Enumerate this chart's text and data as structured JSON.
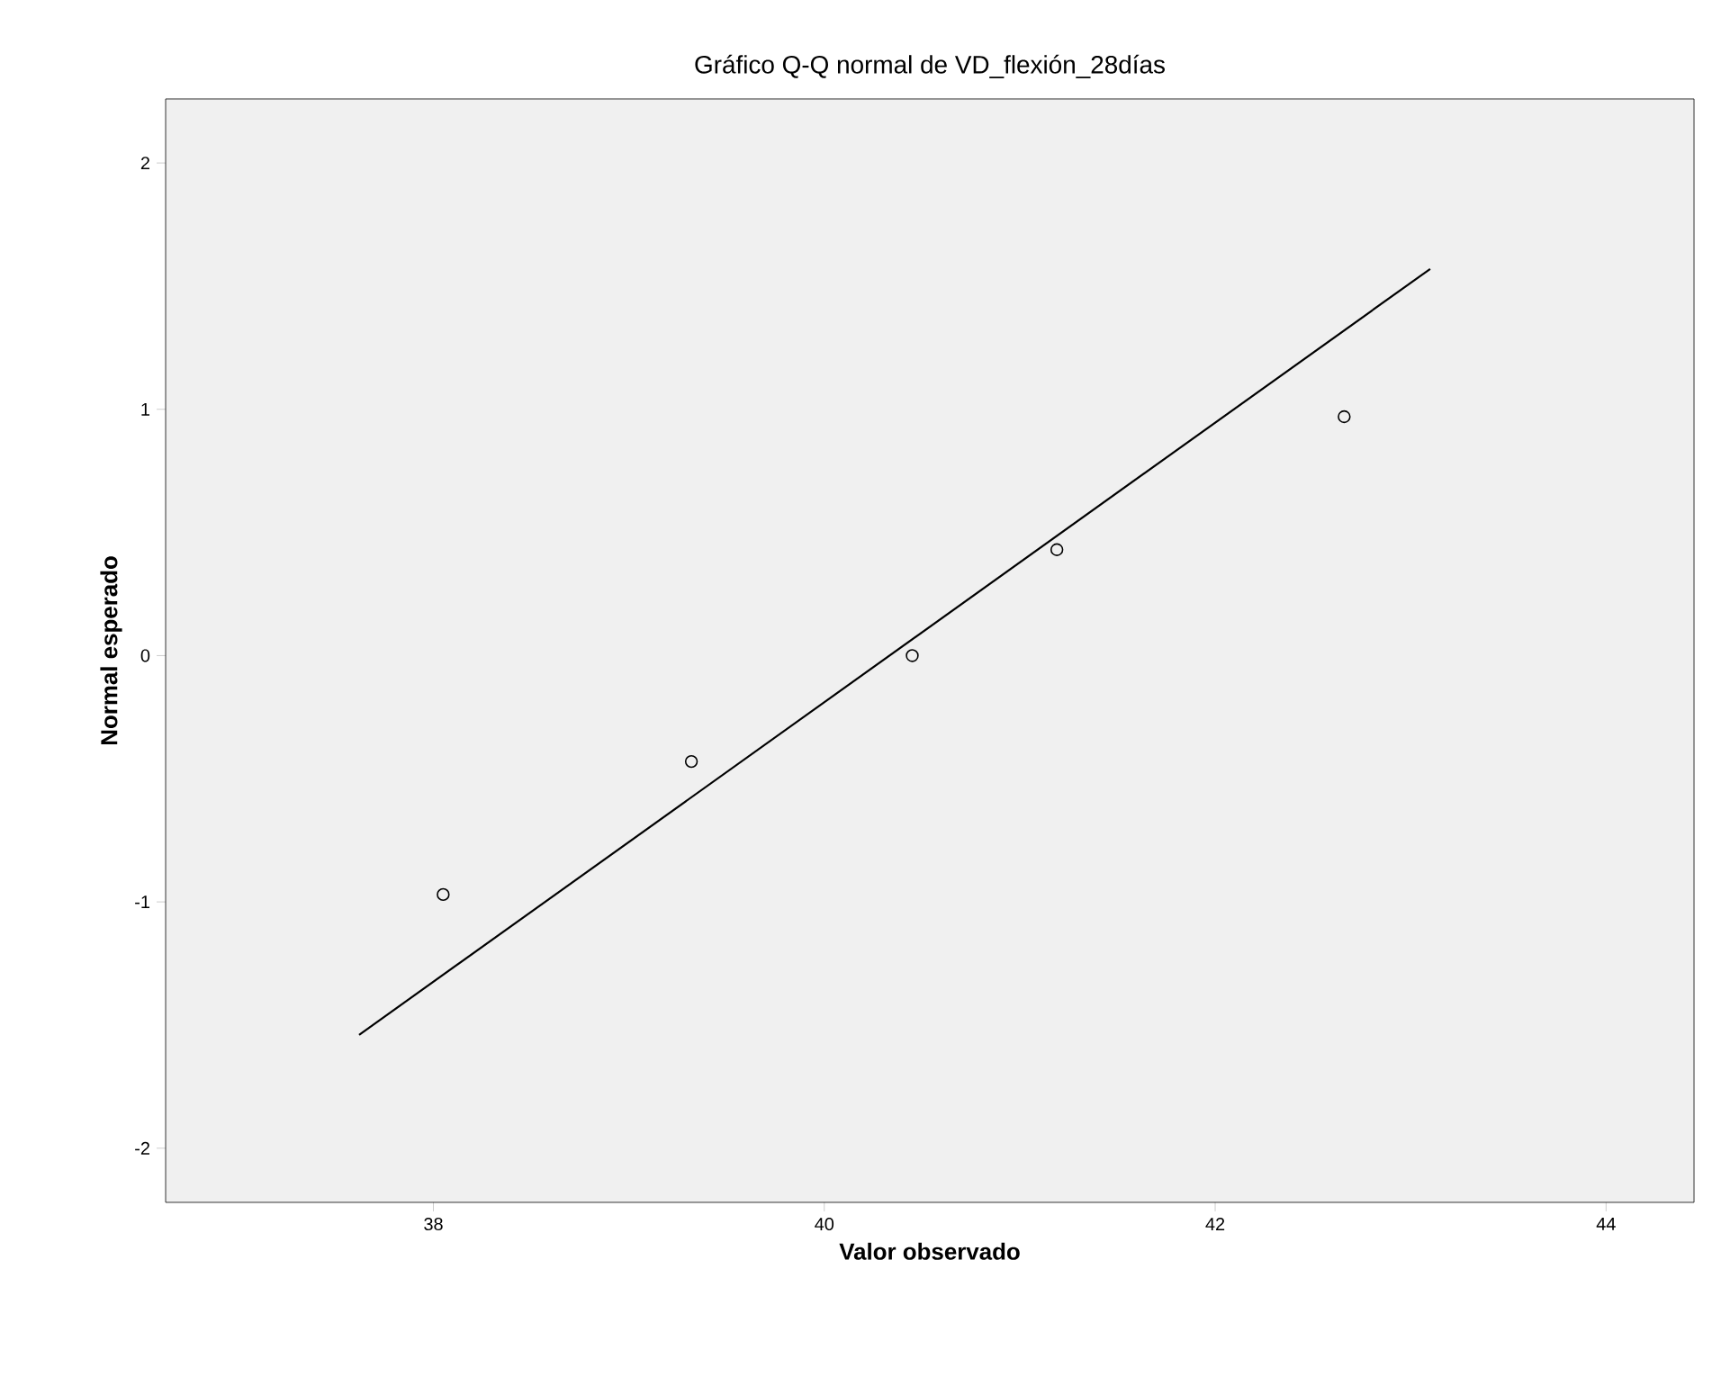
{
  "chart_data": {
    "type": "scatter",
    "title": "Gráfico Q-Q normal de VD_flexión_28días",
    "xlabel": "Valor observado",
    "ylabel": "Normal esperado",
    "xlim": [
      36.63,
      44.45
    ],
    "ylim": [
      -2.22,
      2.26
    ],
    "xticks": [
      38,
      40,
      42,
      44
    ],
    "yticks": [
      -2,
      -1,
      0,
      1,
      2
    ],
    "grid": false,
    "series": [
      {
        "marker": "circle",
        "color": "#000000",
        "x": [
          38.05,
          39.32,
          40.45,
          41.19,
          42.66
        ],
        "values": [
          -0.97,
          -0.43,
          0,
          0.43,
          0.97
        ]
      },
      {
        "type": "line",
        "color": "#000000",
        "x": [
          37.62,
          43.1
        ],
        "values": [
          -1.54,
          1.57
        ]
      }
    ]
  }
}
